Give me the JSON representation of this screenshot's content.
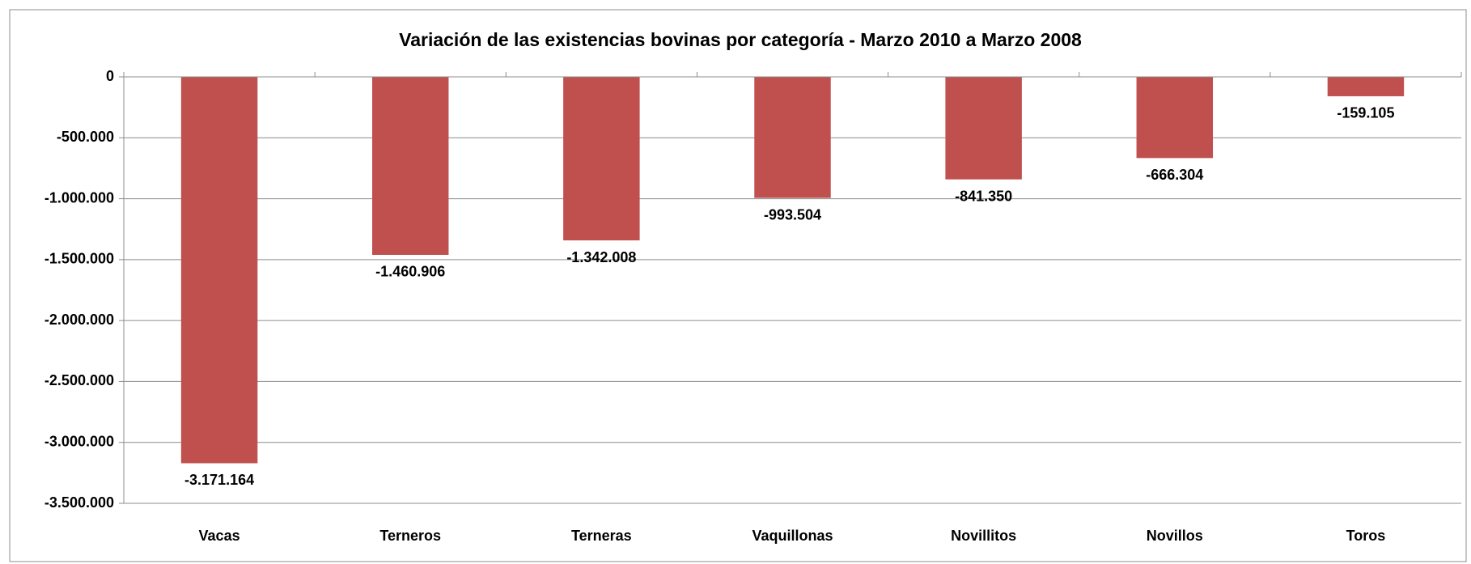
{
  "chart_data": {
    "type": "bar",
    "title": "Variación de las existencias bovinas por categoría - Marzo 2010 a Marzo 2008",
    "categories": [
      "Vacas",
      "Terneros",
      "Terneras",
      "Vaquillonas",
      "Novillitos",
      "Novillos",
      "Toros"
    ],
    "values": [
      -3171164,
      -1460906,
      -1342008,
      -993504,
      -841350,
      -666304,
      -159105
    ],
    "value_labels": [
      "-3.171.164",
      "-1.460.906",
      "-1.342.008",
      "-993.504",
      "-841.350",
      "-666.304",
      "-159.105"
    ],
    "color": "#c0504d",
    "ylim": [
      -3500000,
      0
    ],
    "yticks": [
      {
        "value": -3500000,
        "label": "-3.500.000"
      },
      {
        "value": -3000000,
        "label": "-3.000.000"
      },
      {
        "value": -2500000,
        "label": "-2.500.000"
      },
      {
        "value": -2000000,
        "label": "-2.000.000"
      },
      {
        "value": -1500000,
        "label": "-1.500.000"
      },
      {
        "value": -1000000,
        "label": "-1.000.000"
      },
      {
        "value": -500000,
        "label": "-500.000"
      },
      0
    ],
    "grid": true
  }
}
